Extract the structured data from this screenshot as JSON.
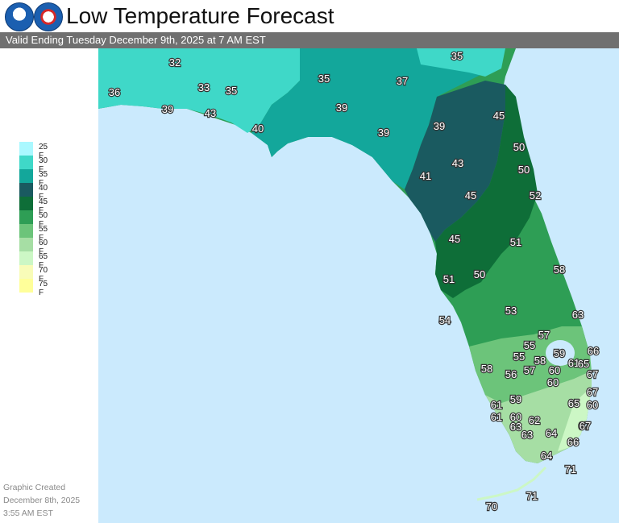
{
  "header": {
    "title": "Low Temperature Forecast",
    "subtitle": "Valid Ending Tuesday December 9th, 2025 at 7 AM EST"
  },
  "logos": [
    {
      "icon": "noaa-logo-icon"
    },
    {
      "icon": "nws-logo-icon"
    }
  ],
  "legend": [
    {
      "label": "25 F",
      "color": "#aaf8ff"
    },
    {
      "label": "30 F",
      "color": "#3fd8c8"
    },
    {
      "label": "35 F",
      "color": "#13a79b"
    },
    {
      "label": "40 F",
      "color": "#1a5a60"
    },
    {
      "label": "45 F",
      "color": "#0e6e38"
    },
    {
      "label": "50 F",
      "color": "#2e9e55"
    },
    {
      "label": "55 F",
      "color": "#6cc47a"
    },
    {
      "label": "60 F",
      "color": "#a6dea4"
    },
    {
      "label": "65 F",
      "color": "#ccf7c5"
    },
    {
      "label": "70 F",
      "color": "#f8fcb8"
    },
    {
      "label": "75 F",
      "color": "#ffff9a"
    }
  ],
  "created": {
    "line1": "Graphic Created",
    "line2": "December 8th, 2025",
    "line3": "3:55 AM EST"
  },
  "map": {
    "water_color": "#cbeafd",
    "labels": [
      "32",
      "36",
      "33",
      "35",
      "39",
      "43",
      "40",
      "35",
      "37",
      "35",
      "39",
      "39",
      "39",
      "45",
      "50",
      "43",
      "41",
      "50",
      "45",
      "52",
      "45",
      "51",
      "51",
      "50",
      "58",
      "53",
      "54",
      "63",
      "57",
      "55",
      "55",
      "58",
      "59",
      "66",
      "58",
      "56",
      "57",
      "60",
      "61",
      "65",
      "67",
      "60",
      "61",
      "60",
      "59",
      "67",
      "60",
      "61",
      "65",
      "67",
      "62",
      "63",
      "63",
      "64",
      "67",
      "66",
      "64",
      "71",
      "71",
      "70"
    ]
  }
}
